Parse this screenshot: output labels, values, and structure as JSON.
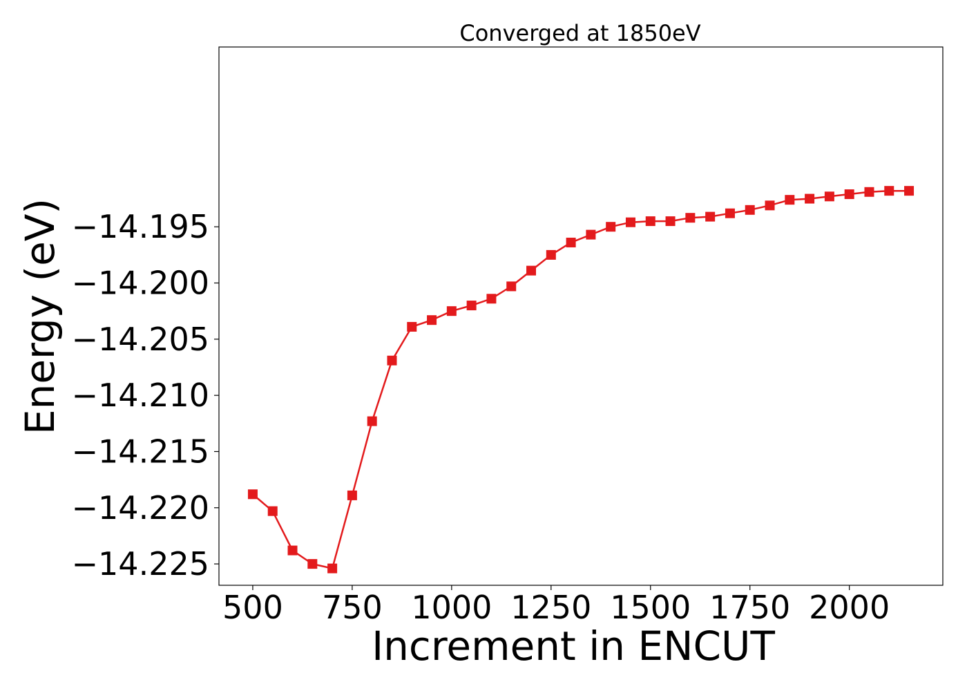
{
  "chart_data": {
    "type": "line",
    "title": "Converged at 1850eV",
    "xlabel": "Increment in ENCUT",
    "ylabel": "Energy (eV)",
    "xlim": [
      415,
      2235
    ],
    "ylim": [
      -14.2269,
      -14.179
    ],
    "x_ticks": [
      500,
      750,
      1000,
      1250,
      1500,
      1750,
      2000
    ],
    "x_tick_labels": [
      "500",
      "750",
      "1000",
      "1250",
      "1500",
      "1750",
      "2000"
    ],
    "y_ticks": [
      -14.195,
      -14.2,
      -14.205,
      -14.21,
      -14.215,
      -14.22,
      -14.225
    ],
    "y_tick_labels": [
      "−14.195",
      "−14.200",
      "−14.205",
      "−14.210",
      "−14.215",
      "−14.220",
      "−14.225"
    ],
    "grid": false,
    "marker": "square",
    "color": "#e31a1c",
    "series": [
      {
        "x": [
          500,
          550,
          600,
          650,
          700,
          750,
          800,
          850,
          900,
          950,
          1000,
          1050,
          1100,
          1150,
          1200,
          1250,
          1300,
          1350,
          1400,
          1450,
          1500,
          1550,
          1600,
          1650,
          1700,
          1750,
          1800,
          1850,
          1900,
          1950,
          2000,
          2050,
          2100,
          2150
        ],
        "y": [
          -14.2188,
          -14.2203,
          -14.2238,
          -14.225,
          -14.2254,
          -14.2189,
          -14.2123,
          -14.2069,
          -14.2039,
          -14.2033,
          -14.2025,
          -14.202,
          -14.2014,
          -14.2003,
          -14.1989,
          -14.1975,
          -14.1964,
          -14.1957,
          -14.195,
          -14.1946,
          -14.1945,
          -14.1945,
          -14.1942,
          -14.1941,
          -14.1938,
          -14.1935,
          -14.1931,
          -14.1926,
          -14.1925,
          -14.1923,
          -14.1921,
          -14.1919,
          -14.1918,
          -14.1918
        ]
      }
    ]
  }
}
